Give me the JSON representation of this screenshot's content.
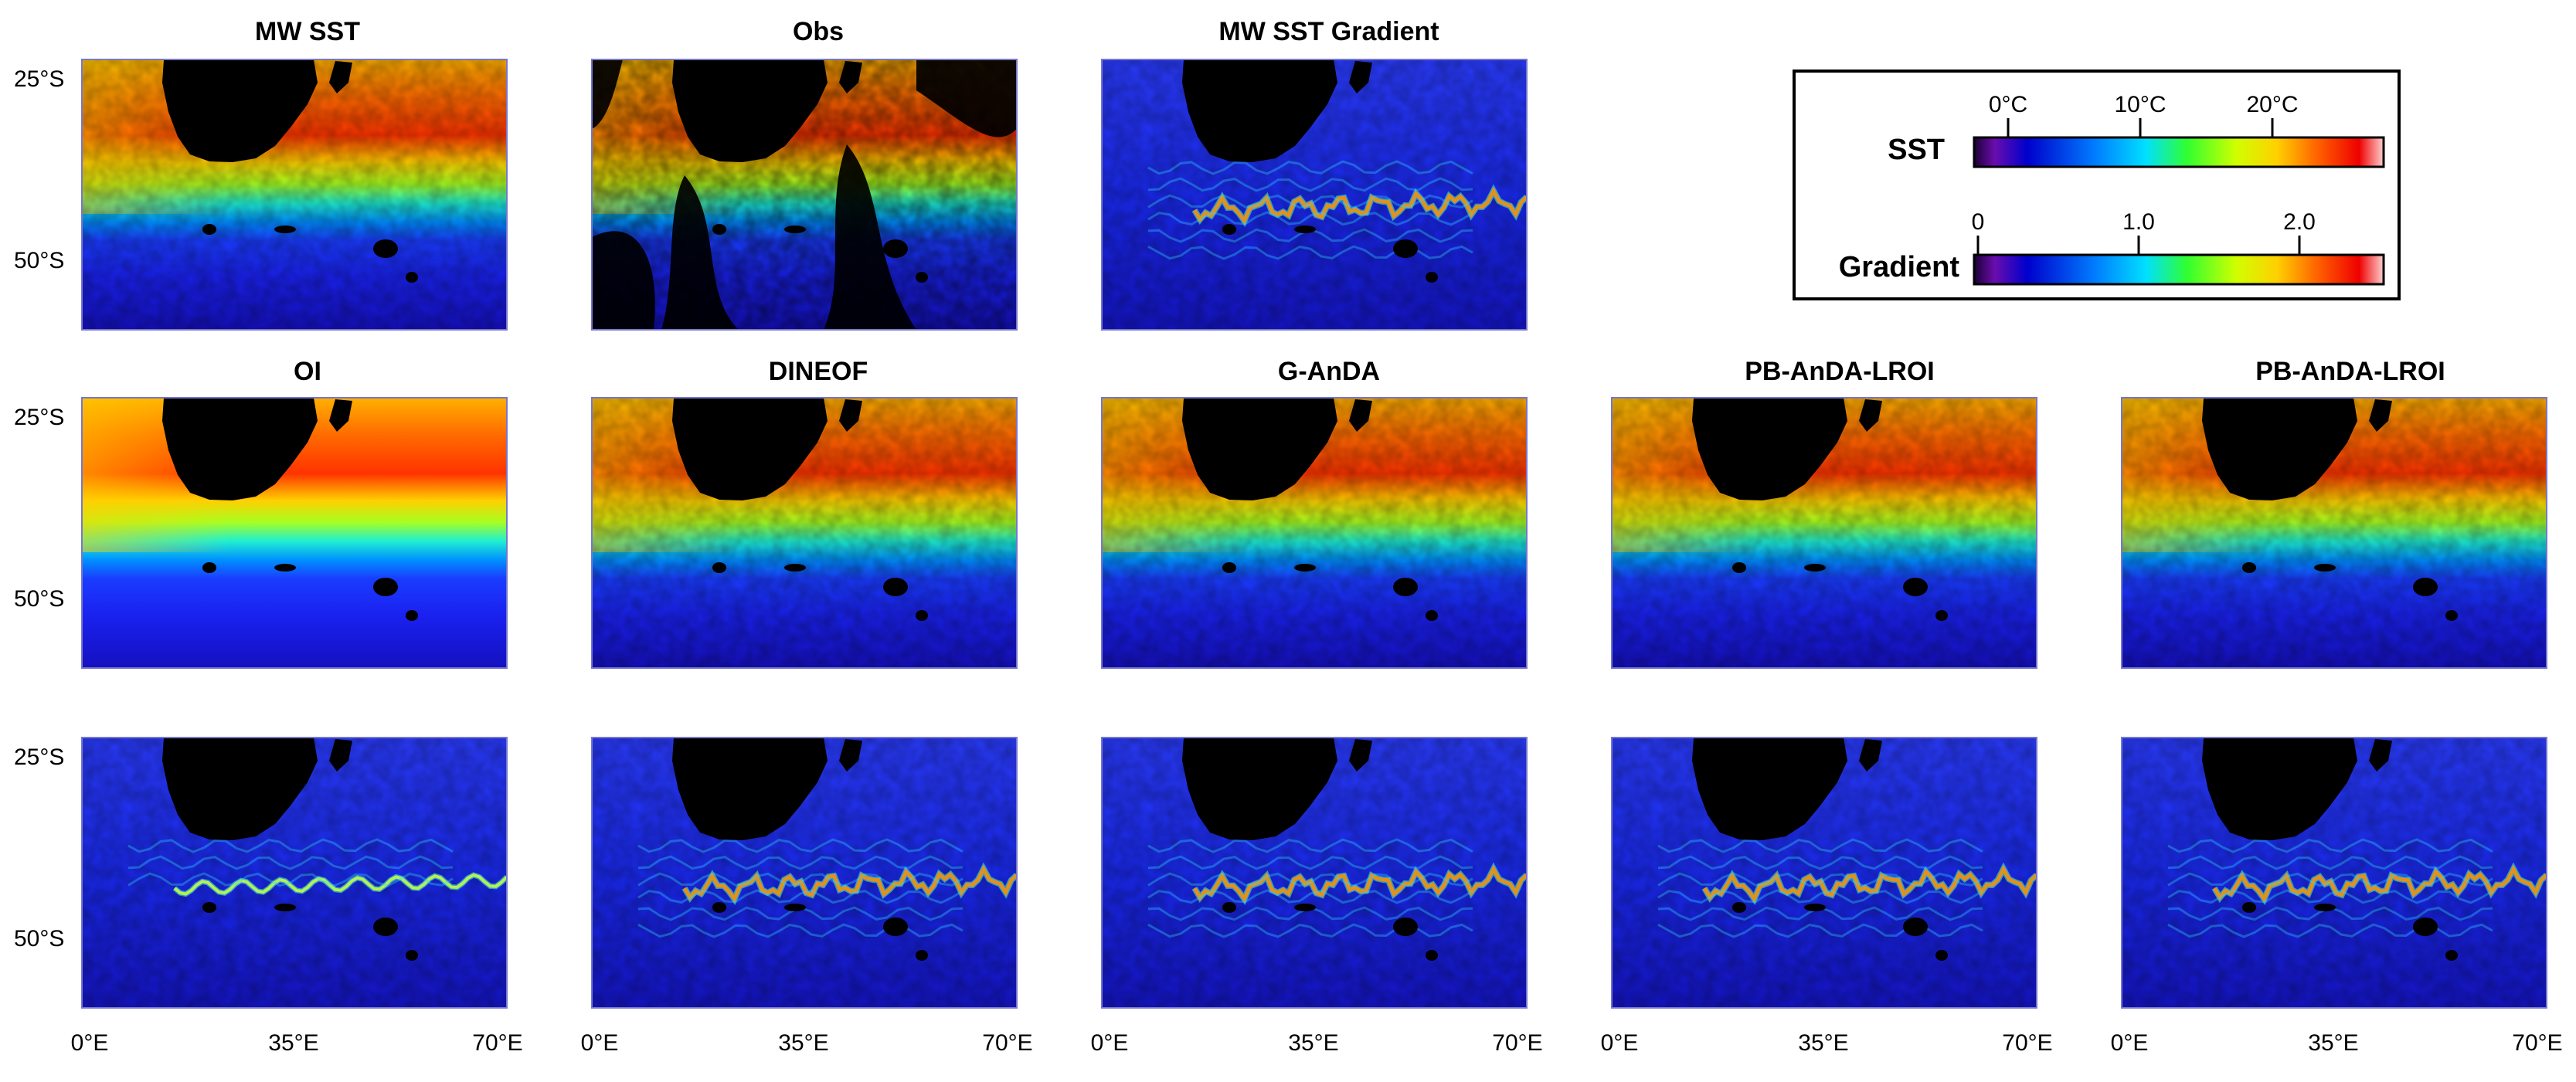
{
  "chart_data": {
    "type": "heatmap",
    "panels": [
      {
        "title": "MW SST",
        "variable": "sst",
        "kind": "full"
      },
      {
        "title": "Obs",
        "variable": "sst",
        "kind": "obs"
      },
      {
        "title": "MW SST Gradient",
        "variable": "gradient",
        "kind": "full"
      },
      {
        "title": "OI",
        "variable": "sst",
        "kind": "smooth"
      },
      {
        "title": "DINEOF",
        "variable": "sst",
        "kind": "full"
      },
      {
        "title": "G-AnDA",
        "variable": "sst",
        "kind": "full"
      },
      {
        "title": "PB-AnDA-LROI",
        "variable": "sst",
        "kind": "full"
      },
      {
        "title": "PB-AnDA-LROI",
        "variable": "sst",
        "kind": "full"
      },
      {
        "title": "",
        "variable": "gradient",
        "kind": "smooth"
      },
      {
        "title": "",
        "variable": "gradient",
        "kind": "full"
      },
      {
        "title": "",
        "variable": "gradient",
        "kind": "full"
      },
      {
        "title": "",
        "variable": "gradient",
        "kind": "full"
      },
      {
        "title": "",
        "variable": "gradient",
        "kind": "full"
      }
    ],
    "y_ticks": [
      "25°S",
      "50°S"
    ],
    "x_ticks": [
      "0°E",
      "35°E",
      "70°E"
    ],
    "lat_range": [
      -60,
      -20
    ],
    "lon_range": [
      0,
      70
    ],
    "colorbars": [
      {
        "label": "SST",
        "ticks": [
          "0°C",
          "10°C",
          "20°C"
        ],
        "tick_values": [
          0,
          10,
          20
        ],
        "range": [
          -3,
          28
        ],
        "colormap": "jet"
      },
      {
        "label": "Gradient",
        "ticks": [
          "0",
          "1.0",
          "2.0"
        ],
        "tick_values": [
          0,
          1,
          2
        ],
        "range": [
          0,
          2.5
        ],
        "colormap": "jet"
      }
    ],
    "colors": {
      "land": "#000000",
      "panel_border": "#7777cc"
    }
  }
}
